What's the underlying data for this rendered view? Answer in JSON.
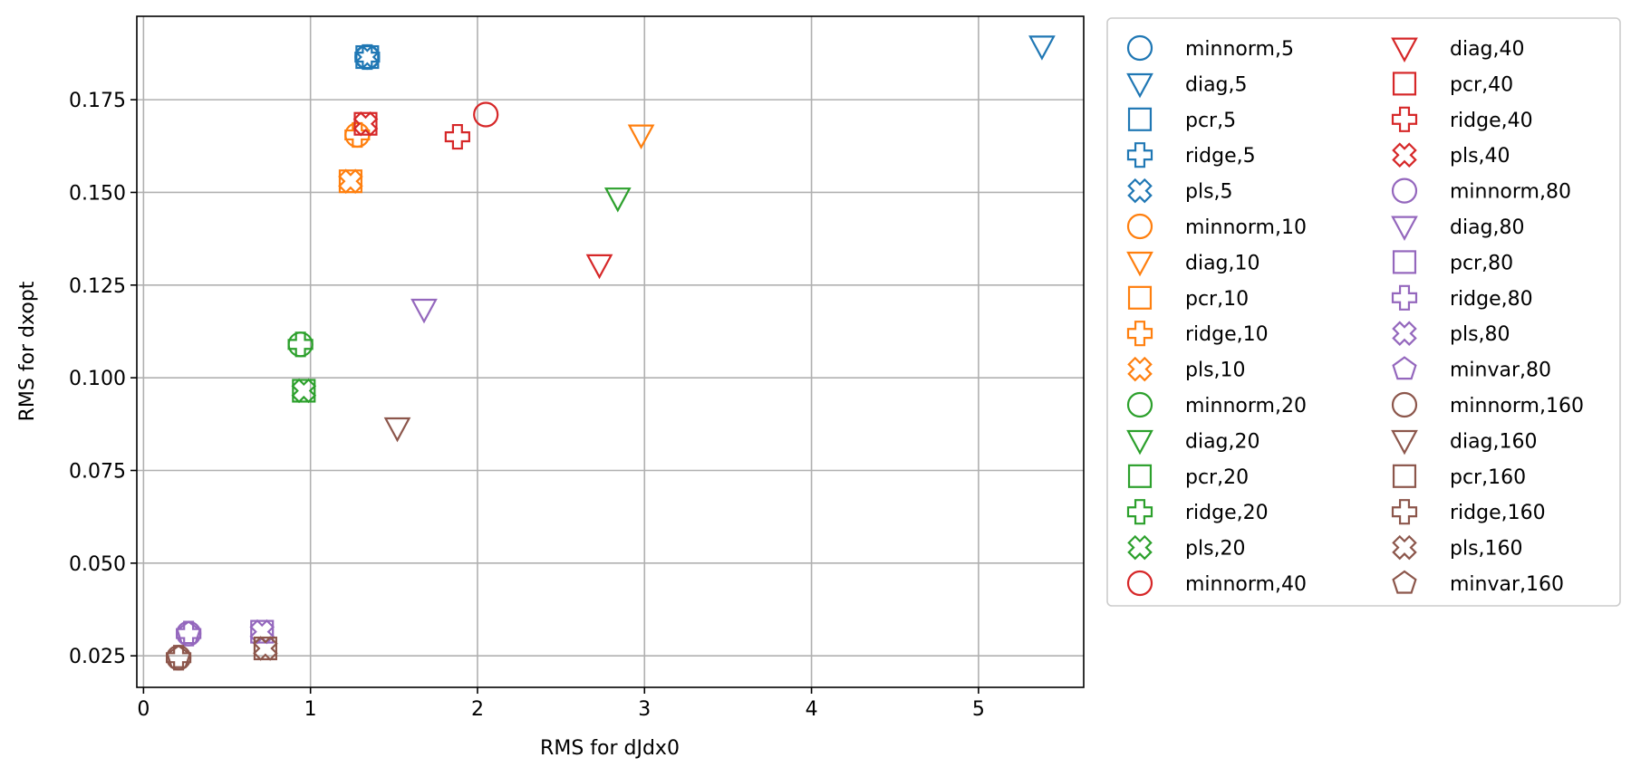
{
  "chart_data": {
    "type": "scatter",
    "title": "",
    "xlabel": "RMS for dJdx0",
    "ylabel": "RMS for dxopt",
    "xlim": [
      -0.04,
      5.63
    ],
    "ylim": [
      0.0165,
      0.1975
    ],
    "xticks": [
      0,
      1,
      2,
      3,
      4,
      5
    ],
    "xtick_labels": [
      "0",
      "1",
      "2",
      "3",
      "4",
      "5"
    ],
    "yticks": [
      0.025,
      0.05,
      0.075,
      0.1,
      0.125,
      0.15,
      0.175
    ],
    "ytick_labels": [
      "0.025",
      "0.050",
      "0.075",
      "0.100",
      "0.125",
      "0.150",
      "0.175"
    ],
    "grid": true,
    "legend_placement": "outside-right",
    "legend_columns": 2,
    "colors": {
      "5": "#1f77b4",
      "10": "#ff7f0e",
      "20": "#2ca02c",
      "40": "#d62728",
      "80": "#9467bd",
      "160": "#8c564b"
    },
    "series": [
      {
        "name": "minnorm,5",
        "method": "minnorm",
        "group": "5",
        "marker": "circle",
        "color": "#1f77b4",
        "x": 1.34,
        "y": 0.1865
      },
      {
        "name": "diag,5",
        "method": "diag",
        "group": "5",
        "marker": "triangle-down",
        "color": "#1f77b4",
        "x": 5.38,
        "y": 0.1895
      },
      {
        "name": "pcr,5",
        "method": "pcr",
        "group": "5",
        "marker": "square",
        "color": "#1f77b4",
        "x": 1.34,
        "y": 0.1865
      },
      {
        "name": "ridge,5",
        "method": "ridge",
        "group": "5",
        "marker": "plus",
        "color": "#1f77b4",
        "x": 1.34,
        "y": 0.1865
      },
      {
        "name": "pls,5",
        "method": "pls",
        "group": "5",
        "marker": "x",
        "color": "#1f77b4",
        "x": 1.34,
        "y": 0.1865
      },
      {
        "name": "minnorm,10",
        "method": "minnorm",
        "group": "10",
        "marker": "circle",
        "color": "#ff7f0e",
        "x": 1.28,
        "y": 0.1655
      },
      {
        "name": "diag,10",
        "method": "diag",
        "group": "10",
        "marker": "triangle-down",
        "color": "#ff7f0e",
        "x": 2.98,
        "y": 0.1655
      },
      {
        "name": "pcr,10",
        "method": "pcr",
        "group": "10",
        "marker": "square",
        "color": "#ff7f0e",
        "x": 1.24,
        "y": 0.153
      },
      {
        "name": "ridge,10",
        "method": "ridge",
        "group": "10",
        "marker": "plus",
        "color": "#ff7f0e",
        "x": 1.28,
        "y": 0.1655
      },
      {
        "name": "pls,10",
        "method": "pls",
        "group": "10",
        "marker": "x",
        "color": "#ff7f0e",
        "x": 1.24,
        "y": 0.153
      },
      {
        "name": "minnorm,20",
        "method": "minnorm",
        "group": "20",
        "marker": "circle",
        "color": "#2ca02c",
        "x": 0.94,
        "y": 0.109
      },
      {
        "name": "diag,20",
        "method": "diag",
        "group": "20",
        "marker": "triangle-down",
        "color": "#2ca02c",
        "x": 2.84,
        "y": 0.1485
      },
      {
        "name": "pcr,20",
        "method": "pcr",
        "group": "20",
        "marker": "square",
        "color": "#2ca02c",
        "x": 0.96,
        "y": 0.0965
      },
      {
        "name": "ridge,20",
        "method": "ridge",
        "group": "20",
        "marker": "plus",
        "color": "#2ca02c",
        "x": 0.94,
        "y": 0.109
      },
      {
        "name": "pls,20",
        "method": "pls",
        "group": "20",
        "marker": "x",
        "color": "#2ca02c",
        "x": 0.96,
        "y": 0.0965
      },
      {
        "name": "minnorm,40",
        "method": "minnorm",
        "group": "40",
        "marker": "circle",
        "color": "#d62728",
        "x": 2.05,
        "y": 0.171
      },
      {
        "name": "diag,40",
        "method": "diag",
        "group": "40",
        "marker": "triangle-down",
        "color": "#d62728",
        "x": 2.73,
        "y": 0.1305
      },
      {
        "name": "pcr,40",
        "method": "pcr",
        "group": "40",
        "marker": "square",
        "color": "#d62728",
        "x": 1.33,
        "y": 0.1685
      },
      {
        "name": "ridge,40",
        "method": "ridge",
        "group": "40",
        "marker": "plus",
        "color": "#d62728",
        "x": 1.88,
        "y": 0.165
      },
      {
        "name": "pls,40",
        "method": "pls",
        "group": "40",
        "marker": "x",
        "color": "#d62728",
        "x": 1.33,
        "y": 0.1685
      },
      {
        "name": "minnorm,80",
        "method": "minnorm",
        "group": "80",
        "marker": "circle",
        "color": "#9467bd",
        "x": 0.27,
        "y": 0.031
      },
      {
        "name": "diag,80",
        "method": "diag",
        "group": "80",
        "marker": "triangle-down",
        "color": "#9467bd",
        "x": 1.68,
        "y": 0.1185
      },
      {
        "name": "pcr,80",
        "method": "pcr",
        "group": "80",
        "marker": "square",
        "color": "#9467bd",
        "x": 0.71,
        "y": 0.0315
      },
      {
        "name": "ridge,80",
        "method": "ridge",
        "group": "80",
        "marker": "plus",
        "color": "#9467bd",
        "x": 0.27,
        "y": 0.031
      },
      {
        "name": "pls,80",
        "method": "pls",
        "group": "80",
        "marker": "x",
        "color": "#9467bd",
        "x": 0.71,
        "y": 0.0315
      },
      {
        "name": "minvar,80",
        "method": "minvar",
        "group": "80",
        "marker": "pentagon",
        "color": "#9467bd",
        "x": 0.27,
        "y": 0.031
      },
      {
        "name": "minnorm,160",
        "method": "minnorm",
        "group": "160",
        "marker": "circle",
        "color": "#8c564b",
        "x": 0.21,
        "y": 0.0245
      },
      {
        "name": "diag,160",
        "method": "diag",
        "group": "160",
        "marker": "triangle-down",
        "color": "#8c564b",
        "x": 1.52,
        "y": 0.0865
      },
      {
        "name": "pcr,160",
        "method": "pcr",
        "group": "160",
        "marker": "square",
        "color": "#8c564b",
        "x": 0.73,
        "y": 0.027
      },
      {
        "name": "ridge,160",
        "method": "ridge",
        "group": "160",
        "marker": "plus",
        "color": "#8c564b",
        "x": 0.21,
        "y": 0.0245
      },
      {
        "name": "pls,160",
        "method": "pls",
        "group": "160",
        "marker": "x",
        "color": "#8c564b",
        "x": 0.73,
        "y": 0.027
      },
      {
        "name": "minvar,160",
        "method": "minvar",
        "group": "160",
        "marker": "pentagon",
        "color": "#8c564b",
        "x": 0.21,
        "y": 0.0245
      }
    ]
  }
}
